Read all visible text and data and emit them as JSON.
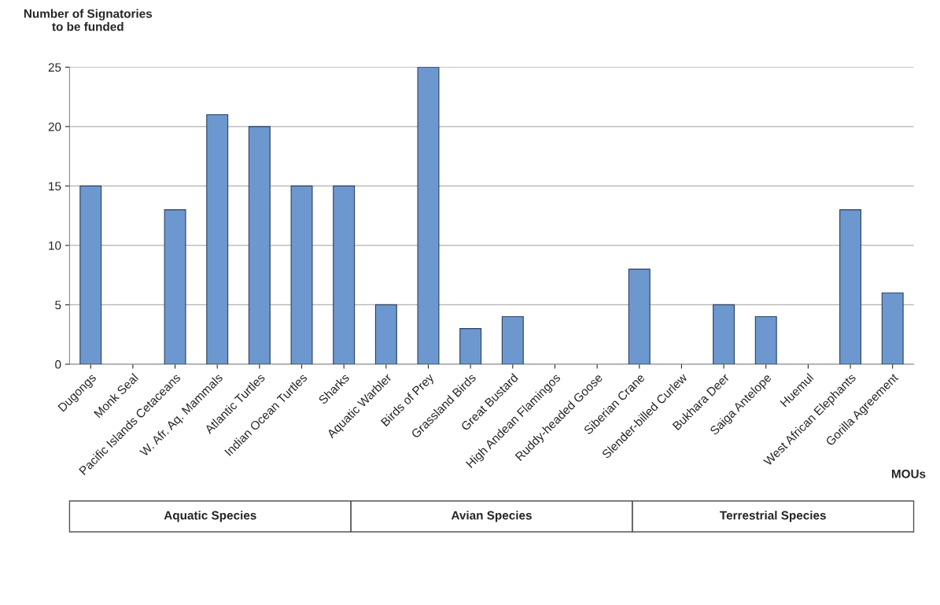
{
  "chart_data": {
    "type": "bar",
    "ylabel": "Number of Signatories\nto be funded",
    "xlabel": "MOUs",
    "categories": [
      "Dugongs",
      "Monk Seal",
      "Pacific Islands Cetaceans",
      "W. Afr. Aq. Mammals",
      "Atlantic Turtles",
      "Indian Ocean Turtles",
      "Sharks",
      "Aquatic Warbler",
      "Birds of Prey",
      "Grassland Birds",
      "Great Bustard",
      "High Andean Flamingos",
      "Ruddy-headed Goose",
      "Siberian Crane",
      "Slender-billed Curlew",
      "Bukhara Deer",
      "Saiga Antelope",
      "Huemul",
      "West African Elephants",
      "Gorilla Agreement"
    ],
    "values": [
      15,
      null,
      13,
      21,
      20,
      15,
      15,
      5,
      25,
      3,
      4,
      null,
      null,
      8,
      null,
      5,
      4,
      null,
      13,
      6
    ],
    "color": "#6d97cf",
    "ylim": [
      0,
      25
    ],
    "yticks": [
      0,
      5,
      10,
      15,
      20,
      25
    ],
    "grid": "y",
    "legend": false,
    "annotations": [
      "Aquatic Species",
      "Avian Species",
      "Terrestrial Species"
    ]
  }
}
